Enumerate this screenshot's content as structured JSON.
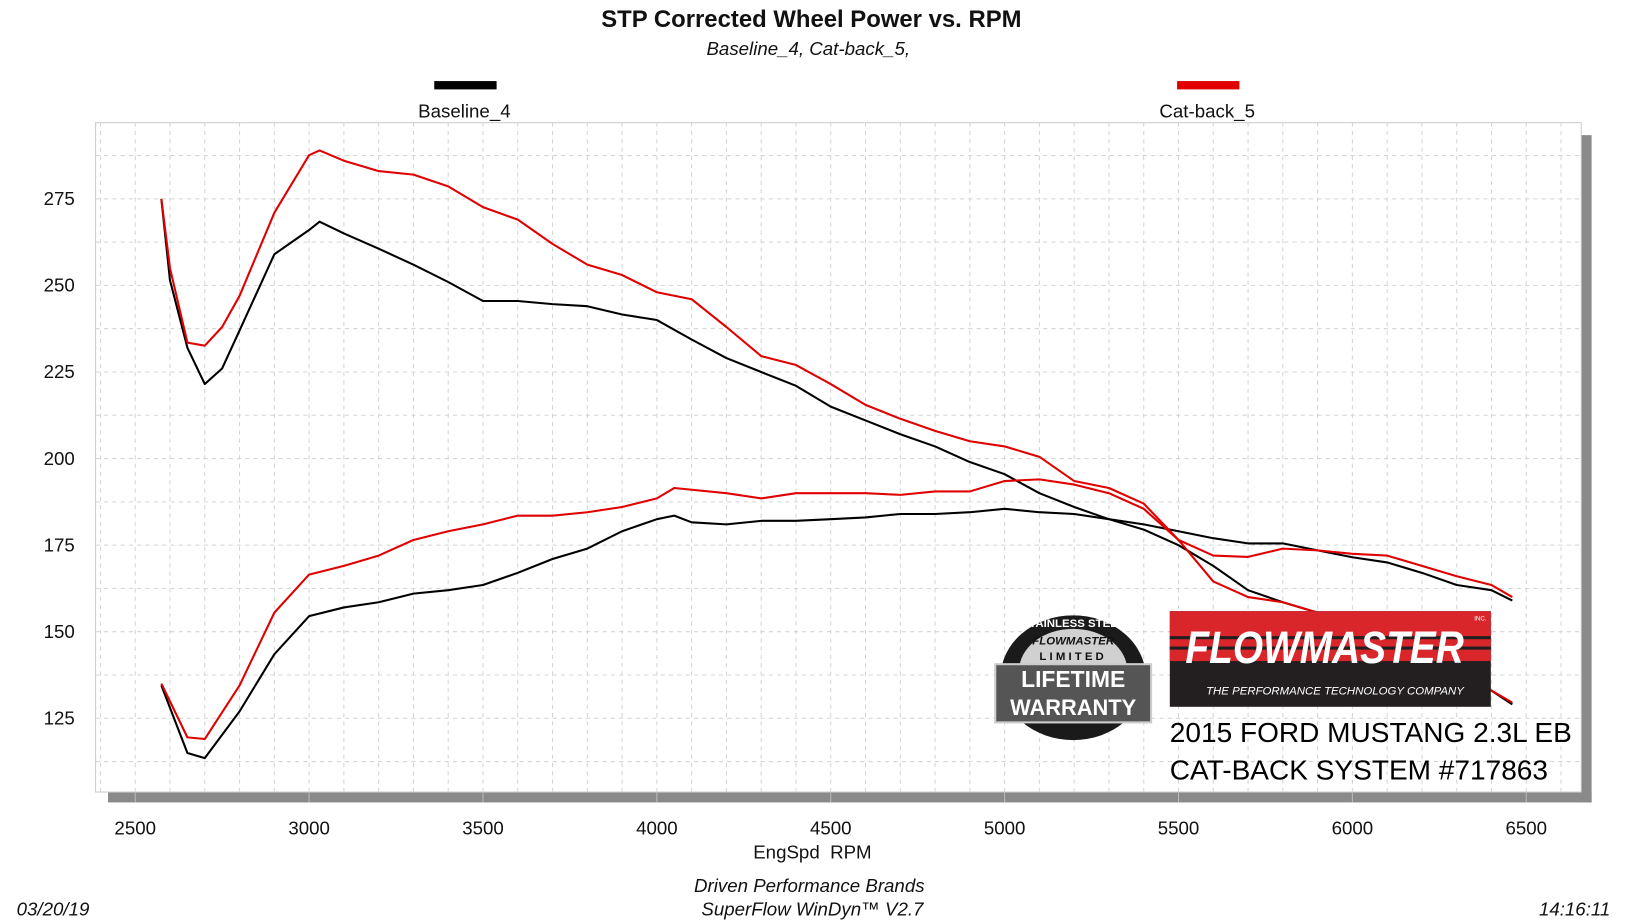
{
  "chart_data": {
    "type": "line",
    "title": "STP Corrected Wheel Power vs. RPM",
    "subtitle": "Baseline_4, Cat-back_5,",
    "xlabel": "EngSpd  RPM",
    "ylabel": "",
    "xlim": [
      2386,
      6658
    ],
    "ylim": [
      103.7,
      297
    ],
    "x_ticks": [
      "2500",
      "3000",
      "3500",
      "4000",
      "4500",
      "5000",
      "5500",
      "6000",
      "6500"
    ],
    "y_ticks": [
      "125",
      "150",
      "175",
      "200",
      "225",
      "250",
      "275"
    ],
    "grid": true,
    "legend_placement": "top",
    "series": [
      {
        "name": "Baseline_4",
        "color": "#000000",
        "curves": [
          {
            "rpm": [
              2575,
              2600,
              2650,
              2700,
              2750,
              2800,
              2900,
              3000,
              3030,
              3100,
              3200,
              3300,
              3400,
              3500,
              3600,
              3700,
              3800,
              3900,
              4000,
              4100,
              4200,
              4300,
              4400,
              4500,
              4600,
              4700,
              4800,
              4900,
              5000,
              5100,
              5200,
              5300,
              5400,
              5500,
              5600,
              5700,
              5800,
              5900,
              6000,
              6100,
              6200,
              6300,
              6400,
              6460
            ],
            "values": [
              275,
              251.5,
              232,
              221.5,
              226,
              237,
              259,
              266,
              268.4,
              265,
              260.6,
              256,
              251,
              245.5,
              245.5,
              244.6,
              244,
              241.6,
              240,
              234.4,
              229,
              225,
              221,
              215,
              211,
              207,
              203.5,
              199,
              195.5,
              190,
              186,
              182.5,
              181,
              179,
              177,
              175.5,
              175.5,
              173.5,
              171.5,
              170,
              167,
              163.5,
              162,
              159
            ]
          },
          {
            "rpm": [
              2575,
              2650,
              2700,
              2800,
              2900,
              3000,
              3100,
              3200,
              3300,
              3400,
              3500,
              3600,
              3700,
              3800,
              3900,
              4000,
              4050,
              4100,
              4200,
              4300,
              4400,
              4500,
              4600,
              4700,
              4800,
              4900,
              5000,
              5100,
              5200,
              5300,
              5400,
              5500,
              5600,
              5700,
              5800,
              5900,
              6000,
              6100,
              6200,
              6300,
              6400,
              6460
            ],
            "values": [
              134.5,
              115,
              113.5,
              127,
              143.5,
              154.5,
              157,
              158.5,
              161,
              162,
              163.5,
              167,
              171,
              174,
              179,
              182.5,
              183.5,
              181.6,
              181,
              182,
              182,
              182.5,
              183,
              184,
              184,
              184.5,
              185.5,
              184.5,
              184,
              182.5,
              179.5,
              175,
              169,
              162,
              158.5,
              155.5,
              151,
              146,
              142,
              137,
              133,
              129
            ]
          }
        ]
      },
      {
        "name": "Cat-back_5",
        "color": "#e00000",
        "curves": [
          {
            "rpm": [
              2575,
              2600,
              2650,
              2700,
              2750,
              2800,
              2900,
              3000,
              3030,
              3100,
              3200,
              3300,
              3400,
              3500,
              3600,
              3700,
              3800,
              3900,
              4000,
              4100,
              4200,
              4300,
              4400,
              4500,
              4600,
              4700,
              4800,
              4900,
              5000,
              5100,
              5200,
              5300,
              5400,
              5500,
              5600,
              5700,
              5800,
              5900,
              6000,
              6100,
              6200,
              6300,
              6400,
              6460
            ],
            "values": [
              275,
              255,
              233.5,
              232.6,
              238,
              247,
              271,
              287.6,
              289,
              286,
              283,
              282,
              278.6,
              272.6,
              269,
              262,
              256,
              253,
              248,
              246,
              238,
              229.6,
              227,
              221.5,
              215.5,
              211.5,
              208,
              205,
              203.5,
              200.5,
              193.5,
              191.5,
              187,
              176.5,
              164.5,
              160,
              158.5,
              155.5,
              151,
              146.5,
              142,
              137.5,
              133,
              129.5
            ]
          },
          {
            "rpm": [
              2575,
              2650,
              2700,
              2800,
              2900,
              3000,
              3100,
              3200,
              3300,
              3400,
              3500,
              3600,
              3700,
              3800,
              3900,
              4000,
              4050,
              4200,
              4300,
              4400,
              4500,
              4600,
              4700,
              4800,
              4900,
              5000,
              5100,
              5200,
              5300,
              5400,
              5500,
              5600,
              5700,
              5800,
              5900,
              6000,
              6100,
              6200,
              6300,
              6400,
              6460
            ],
            "values": [
              135,
              119.5,
              119,
              134.5,
              155.5,
              166.5,
              169,
              172,
              176.5,
              179,
              181,
              183.5,
              183.5,
              184.5,
              186,
              188.5,
              191.5,
              190,
              188.5,
              190,
              190,
              190,
              189.5,
              190.5,
              190.5,
              193.5,
              194,
              192.5,
              190,
              185.5,
              176.5,
              172,
              171.6,
              174,
              173.5,
              172.5,
              172,
              169,
              166,
              163.5,
              160
            ]
          }
        ]
      }
    ]
  },
  "annotation": {
    "line1": "2015 FORD MUSTANG 2.3L EB",
    "line2": "CAT-BACK SYSTEM #717863"
  },
  "logos": {
    "flowmaster": {
      "name": "FLOWMASTER",
      "tagline": "THE PERFORMANCE TECHNOLOGY COMPANY",
      "inc": "INC."
    },
    "warranty": {
      "arc": "STAINLESS STEEL",
      "brand": "FLOWMASTER",
      "limited": "LIMITED",
      "lifetime": "LIFETIME",
      "warranty": "WARRANTY"
    }
  },
  "footer": {
    "company": "Driven Performance Brands",
    "software": "SuperFlow WinDyn™  V2.7",
    "date": "03/20/19",
    "time": "14:16:11"
  }
}
